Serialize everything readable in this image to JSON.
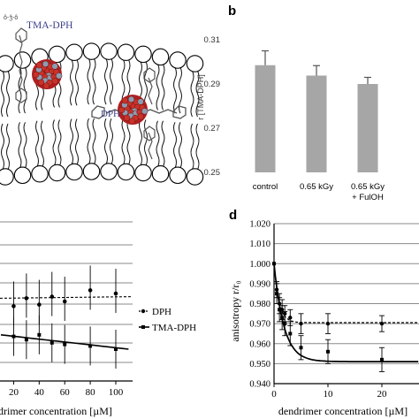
{
  "panel_a": {
    "probe_tma_label": "TMA-DPH",
    "probe_dph_label": "DPH"
  },
  "chart_data": [
    {
      "panel": "b",
      "type": "bar",
      "ylabel": "r [TMA-DPH]",
      "ylim": [
        0.25,
        0.31
      ],
      "yticks": [
        "0.31",
        "0.29",
        "0.27",
        "0.25"
      ],
      "categories": [
        "control",
        "0.65 kGy",
        "0.65 kGy\n+ FulOH"
      ],
      "category_lines": [
        [
          "control"
        ],
        [
          "0.65 kGy"
        ],
        [
          "0.65 kGy",
          "+ FulOH"
        ]
      ],
      "values": [
        0.2985,
        0.2938,
        0.29
      ],
      "errors": [
        0.0065,
        0.0045,
        0.003
      ],
      "color": "#a6a6a6"
    },
    {
      "panel": "c",
      "type": "line",
      "xlabel": "drimer concentration [µM]",
      "xticks": [
        "20",
        "40",
        "60",
        "80",
        "100"
      ],
      "legend": [
        "DPH",
        "TMA-DPH"
      ],
      "series": [
        {
          "name": "DPH",
          "style": "dashed",
          "x": [
            20,
            30,
            40,
            50,
            60,
            80,
            100
          ],
          "y": [
            0.47,
            0.52,
            0.48,
            0.53,
            0.5,
            0.57,
            0.55
          ]
        },
        {
          "name": "TMA-DPH",
          "style": "solid",
          "x": [
            20,
            30,
            40,
            50,
            60,
            80,
            100
          ],
          "y": [
            0.28,
            0.26,
            0.29,
            0.24,
            0.23,
            0.22,
            0.2
          ]
        }
      ]
    },
    {
      "panel": "d",
      "type": "line",
      "ylabel": "anisotropy r/r₀",
      "xlabel": "dendrimer concentration [µM]",
      "ylim": [
        0.94,
        1.02
      ],
      "yticks": [
        "1.020",
        "1.010",
        "1.000",
        "0.990",
        "0.980",
        "0.970",
        "0.960",
        "0.950",
        "0.940"
      ],
      "xticks": [
        "0",
        "10",
        "20"
      ],
      "legend": [
        "DPH",
        "TMA-DPH"
      ],
      "series": [
        {
          "name": "DPH",
          "style": "dashed",
          "x": [
            0,
            0.5,
            1,
            1.5,
            2,
            3,
            5,
            10,
            20
          ],
          "y": [
            1.0,
            0.987,
            0.98,
            0.977,
            0.975,
            0.973,
            0.97,
            0.97,
            0.97
          ],
          "err": [
            0,
            0.004,
            0.005,
            0.005,
            0.004,
            0.004,
            0.005,
            0.005,
            0.004
          ]
        },
        {
          "name": "TMA-DPH",
          "style": "solid",
          "x": [
            0,
            0.5,
            1,
            1.5,
            2,
            3,
            5,
            10,
            20
          ],
          "y": [
            1.0,
            0.985,
            0.977,
            0.973,
            0.97,
            0.965,
            0.958,
            0.956,
            0.952
          ],
          "err": [
            0,
            0.005,
            0.006,
            0.006,
            0.006,
            0.006,
            0.006,
            0.006,
            0.006
          ]
        }
      ]
    }
  ],
  "panel_labels": {
    "b": "b",
    "d": "d"
  }
}
